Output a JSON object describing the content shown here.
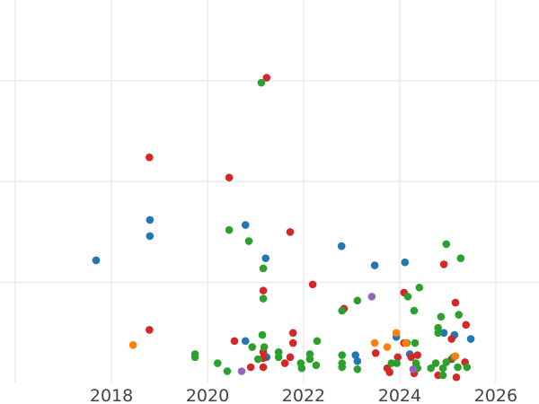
{
  "chart_data": {
    "type": "scatter",
    "title": "",
    "xlabel": "",
    "ylabel": "",
    "xlim": [
      2015.68,
      2026.9
    ],
    "ylim": [
      0,
      3.8
    ],
    "grid": true,
    "x_ticks": [
      2016,
      2018,
      2020,
      2022,
      2024,
      2026
    ],
    "x_tick_labels": [
      "",
      "2018",
      "2020",
      "2022",
      "2024",
      "2026"
    ],
    "y_gridlines": [
      1,
      2,
      3
    ],
    "series": [
      {
        "color": "#1f77b4",
        "points": [
          [
            2017.68,
            1.22
          ],
          [
            2018.8,
            1.62
          ],
          [
            2018.8,
            1.46
          ],
          [
            2020.79,
            1.57
          ],
          [
            2021.21,
            1.24
          ],
          [
            2022.79,
            1.36
          ],
          [
            2023.48,
            1.17
          ],
          [
            2024.11,
            1.2
          ],
          [
            2020.79,
            0.42
          ],
          [
            2021.23,
            0.26
          ],
          [
            2023.08,
            0.28
          ],
          [
            2023.93,
            0.46
          ],
          [
            2024.21,
            0.29
          ],
          [
            2024.92,
            0.5
          ],
          [
            2025.14,
            0.48
          ],
          [
            2025.48,
            0.44
          ],
          [
            2023.12,
            0.22
          ]
        ]
      },
      {
        "color": "#d62728",
        "points": [
          [
            2021.23,
            3.03
          ],
          [
            2018.79,
            2.24
          ],
          [
            2020.45,
            2.04
          ],
          [
            2021.72,
            1.5
          ],
          [
            2022.19,
            0.98
          ],
          [
            2021.16,
            0.92
          ],
          [
            2022.84,
            0.74
          ],
          [
            2024.92,
            1.18
          ],
          [
            2024.09,
            0.9
          ],
          [
            2025.16,
            0.8
          ],
          [
            2025.38,
            0.58
          ],
          [
            2018.79,
            0.53
          ],
          [
            2020.56,
            0.42
          ],
          [
            2021.78,
            0.5
          ],
          [
            2021.78,
            0.4
          ],
          [
            2021.16,
            0.31
          ],
          [
            2021.16,
            0.25
          ],
          [
            2020.9,
            0.16
          ],
          [
            2021.16,
            0.16
          ],
          [
            2021.61,
            0.2
          ],
          [
            2021.72,
            0.26
          ],
          [
            2023.5,
            0.3
          ],
          [
            2023.74,
            0.15
          ],
          [
            2023.79,
            0.11
          ],
          [
            2023.96,
            0.26
          ],
          [
            2024.3,
            0.1
          ],
          [
            2024.24,
            0.26
          ],
          [
            2024.37,
            0.28
          ],
          [
            2024.8,
            0.08
          ],
          [
            2025.08,
            0.24
          ],
          [
            2025.08,
            0.44
          ],
          [
            2025.18,
            0.06
          ],
          [
            2025.36,
            0.21
          ],
          [
            2024.09,
            0.4
          ]
        ]
      },
      {
        "color": "#2ca02c",
        "points": [
          [
            2021.12,
            2.98
          ],
          [
            2020.45,
            1.52
          ],
          [
            2020.86,
            1.41
          ],
          [
            2021.16,
            1.14
          ],
          [
            2021.16,
            0.84
          ],
          [
            2024.97,
            1.38
          ],
          [
            2025.27,
            1.24
          ],
          [
            2024.41,
            0.95
          ],
          [
            2024.17,
            0.86
          ],
          [
            2023.12,
            0.82
          ],
          [
            2022.8,
            0.72
          ],
          [
            2024.3,
            0.72
          ],
          [
            2024.86,
            0.66
          ],
          [
            2025.23,
            0.68
          ],
          [
            2024.8,
            0.55
          ],
          [
            2024.8,
            0.5
          ],
          [
            2019.74,
            0.29
          ],
          [
            2019.74,
            0.26
          ],
          [
            2020.21,
            0.2
          ],
          [
            2020.41,
            0.12
          ],
          [
            2020.93,
            0.36
          ],
          [
            2021.18,
            0.36
          ],
          [
            2021.14,
            0.48
          ],
          [
            2021.05,
            0.24
          ],
          [
            2021.48,
            0.31
          ],
          [
            2021.48,
            0.26
          ],
          [
            2021.94,
            0.2
          ],
          [
            2021.96,
            0.15
          ],
          [
            2022.13,
            0.29
          ],
          [
            2022.13,
            0.24
          ],
          [
            2022.26,
            0.18
          ],
          [
            2022.28,
            0.42
          ],
          [
            2022.8,
            0.28
          ],
          [
            2022.8,
            0.2
          ],
          [
            2022.8,
            0.16
          ],
          [
            2023.12,
            0.14
          ],
          [
            2023.83,
            0.2
          ],
          [
            2023.94,
            0.2
          ],
          [
            2024.15,
            0.4
          ],
          [
            2024.32,
            0.4
          ],
          [
            2024.34,
            0.2
          ],
          [
            2024.37,
            0.15
          ],
          [
            2024.65,
            0.15
          ],
          [
            2024.75,
            0.2
          ],
          [
            2024.9,
            0.15
          ],
          [
            2024.9,
            0.08
          ],
          [
            2024.97,
            0.21
          ],
          [
            2025.12,
            0.26
          ],
          [
            2025.21,
            0.16
          ],
          [
            2025.4,
            0.16
          ]
        ]
      },
      {
        "color": "#ff7f0e",
        "points": [
          [
            2018.45,
            0.38
          ],
          [
            2023.48,
            0.4
          ],
          [
            2023.74,
            0.36
          ],
          [
            2023.93,
            0.5
          ],
          [
            2024.13,
            0.4
          ],
          [
            2025.16,
            0.27
          ]
        ]
      },
      {
        "color": "#9467bd",
        "points": [
          [
            2023.42,
            0.86
          ],
          [
            2020.71,
            0.12
          ],
          [
            2024.28,
            0.14
          ]
        ]
      }
    ]
  }
}
